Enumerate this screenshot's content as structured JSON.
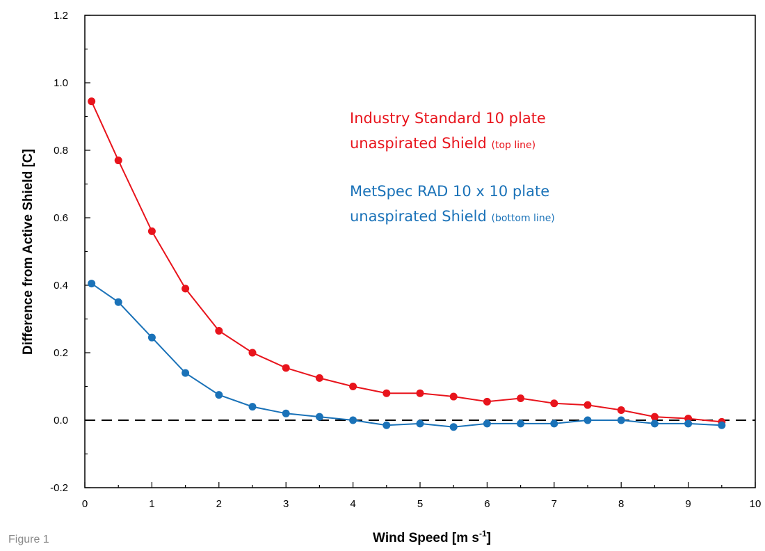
{
  "caption": "Figure 1",
  "chart_data": {
    "type": "line",
    "title": "",
    "xlabel": {
      "main": "Wind Speed  [m s",
      "sup": "-1",
      "end": "]"
    },
    "ylabel": "Difference from Active Shield [C]",
    "xlim": [
      0,
      10
    ],
    "ylim": [
      -0.2,
      1.2
    ],
    "x_ticks": [
      "0",
      "1",
      "2",
      "3",
      "4",
      "5",
      "6",
      "7",
      "8",
      "9",
      "10"
    ],
    "y_ticks": [
      "-0.2",
      "0.0",
      "0.2",
      "0.4",
      "0.6",
      "0.8",
      "1.0",
      "1.2"
    ],
    "grid": false,
    "reference_line": {
      "y": 0.0,
      "style": "dashed",
      "color": "#000000"
    },
    "x": [
      0.1,
      0.5,
      1.0,
      1.5,
      2.0,
      2.5,
      3.0,
      3.5,
      4.0,
      4.5,
      5.0,
      5.5,
      6.0,
      6.5,
      7.0,
      7.5,
      8.0,
      8.5,
      9.0,
      9.5
    ],
    "series": [
      {
        "color": "#e8141c",
        "values": [
          0.945,
          0.77,
          0.56,
          0.39,
          0.265,
          0.2,
          0.155,
          0.125,
          0.1,
          0.08,
          0.08,
          0.07,
          0.055,
          0.065,
          0.05,
          0.045,
          0.03,
          0.01,
          0.005,
          -0.005
        ]
      },
      {
        "color": "#1a72b8",
        "values": [
          0.405,
          0.35,
          0.245,
          0.14,
          0.075,
          0.04,
          0.02,
          0.01,
          0.0,
          -0.015,
          -0.01,
          -0.02,
          -0.01,
          -0.01,
          -0.01,
          0.0,
          0.0,
          -0.01,
          -0.01,
          -0.015
        ]
      }
    ],
    "annotations": [
      {
        "lines": [
          {
            "big": "Industry Standard 10 plate",
            "small": ""
          },
          {
            "big": "unaspirated Shield ",
            "small": "(top line)"
          }
        ],
        "color": "#e8141c"
      },
      {
        "lines": [
          {
            "big": "MetSpec RAD 10 x 10 plate",
            "small": ""
          },
          {
            "big": "unaspirated Shield ",
            "small": "(bottom line)"
          }
        ],
        "color": "#1a72b8"
      }
    ]
  }
}
